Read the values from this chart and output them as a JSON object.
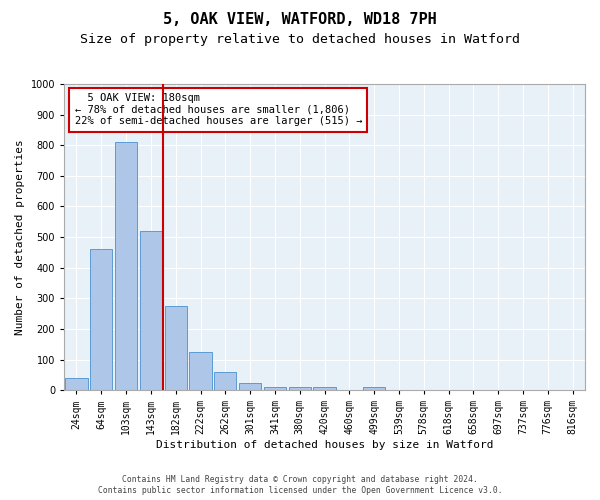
{
  "title1": "5, OAK VIEW, WATFORD, WD18 7PH",
  "title2": "Size of property relative to detached houses in Watford",
  "xlabel": "Distribution of detached houses by size in Watford",
  "ylabel": "Number of detached properties",
  "footnote1": "Contains HM Land Registry data © Crown copyright and database right 2024.",
  "footnote2": "Contains public sector information licensed under the Open Government Licence v3.0.",
  "categories": [
    "24sqm",
    "64sqm",
    "103sqm",
    "143sqm",
    "182sqm",
    "222sqm",
    "262sqm",
    "301sqm",
    "341sqm",
    "380sqm",
    "420sqm",
    "460sqm",
    "499sqm",
    "539sqm",
    "578sqm",
    "618sqm",
    "658sqm",
    "697sqm",
    "737sqm",
    "776sqm",
    "816sqm"
  ],
  "values": [
    40,
    460,
    810,
    520,
    275,
    125,
    60,
    22,
    10,
    10,
    10,
    0,
    10,
    0,
    0,
    0,
    0,
    0,
    0,
    0,
    0
  ],
  "bar_color": "#aec6e8",
  "bar_edge_color": "#5b9bd5",
  "vline_x": 4,
  "vline_color": "#cc0000",
  "annotation_text": "  5 OAK VIEW: 180sqm\n← 78% of detached houses are smaller (1,806)\n22% of semi-detached houses are larger (515) →",
  "annotation_box_color": "#cc0000",
  "ylim": [
    0,
    1000
  ],
  "yticks": [
    0,
    100,
    200,
    300,
    400,
    500,
    600,
    700,
    800,
    900,
    1000
  ],
  "plot_bg": "#e8f0f8",
  "title1_fontsize": 11,
  "title2_fontsize": 9.5,
  "axis_label_fontsize": 8,
  "tick_fontsize": 7,
  "annotation_fontsize": 7.5,
  "footnote_fontsize": 5.8
}
